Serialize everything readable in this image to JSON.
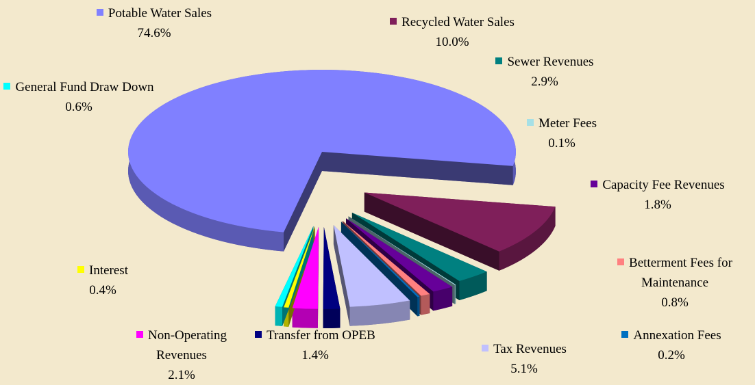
{
  "chart_data": {
    "type": "pie",
    "categories": [
      "Potable Water Sales",
      "Recycled Water Sales",
      "Sewer Revenues",
      "Meter Fees",
      "Capacity Fee Revenues",
      "Betterment Fees for Maintenance",
      "Annexation Fees",
      "Tax Revenues",
      "Transfer from OPEB",
      "Non-Operating Revenues",
      "Interest",
      "General Fund Draw Down"
    ],
    "values": [
      74.6,
      10.0,
      2.9,
      0.1,
      1.8,
      0.8,
      0.2,
      5.1,
      1.4,
      2.1,
      0.4,
      0.6
    ],
    "value_labels": [
      "74.6%",
      "10.0%",
      "2.9%",
      "0.1%",
      "1.8%",
      "0.8%",
      "0.2%",
      "5.1%",
      "1.4%",
      "2.1%",
      "0.4%",
      "0.6%"
    ],
    "colors": [
      "#8080ff",
      "#7f1f5a",
      "#008080",
      "#a6e0e6",
      "#660099",
      "#ff8080",
      "#0070c0",
      "#c0c0ff",
      "#000080",
      "#ff00ff",
      "#ffff00",
      "#00ffff"
    ],
    "three_d": true
  }
}
